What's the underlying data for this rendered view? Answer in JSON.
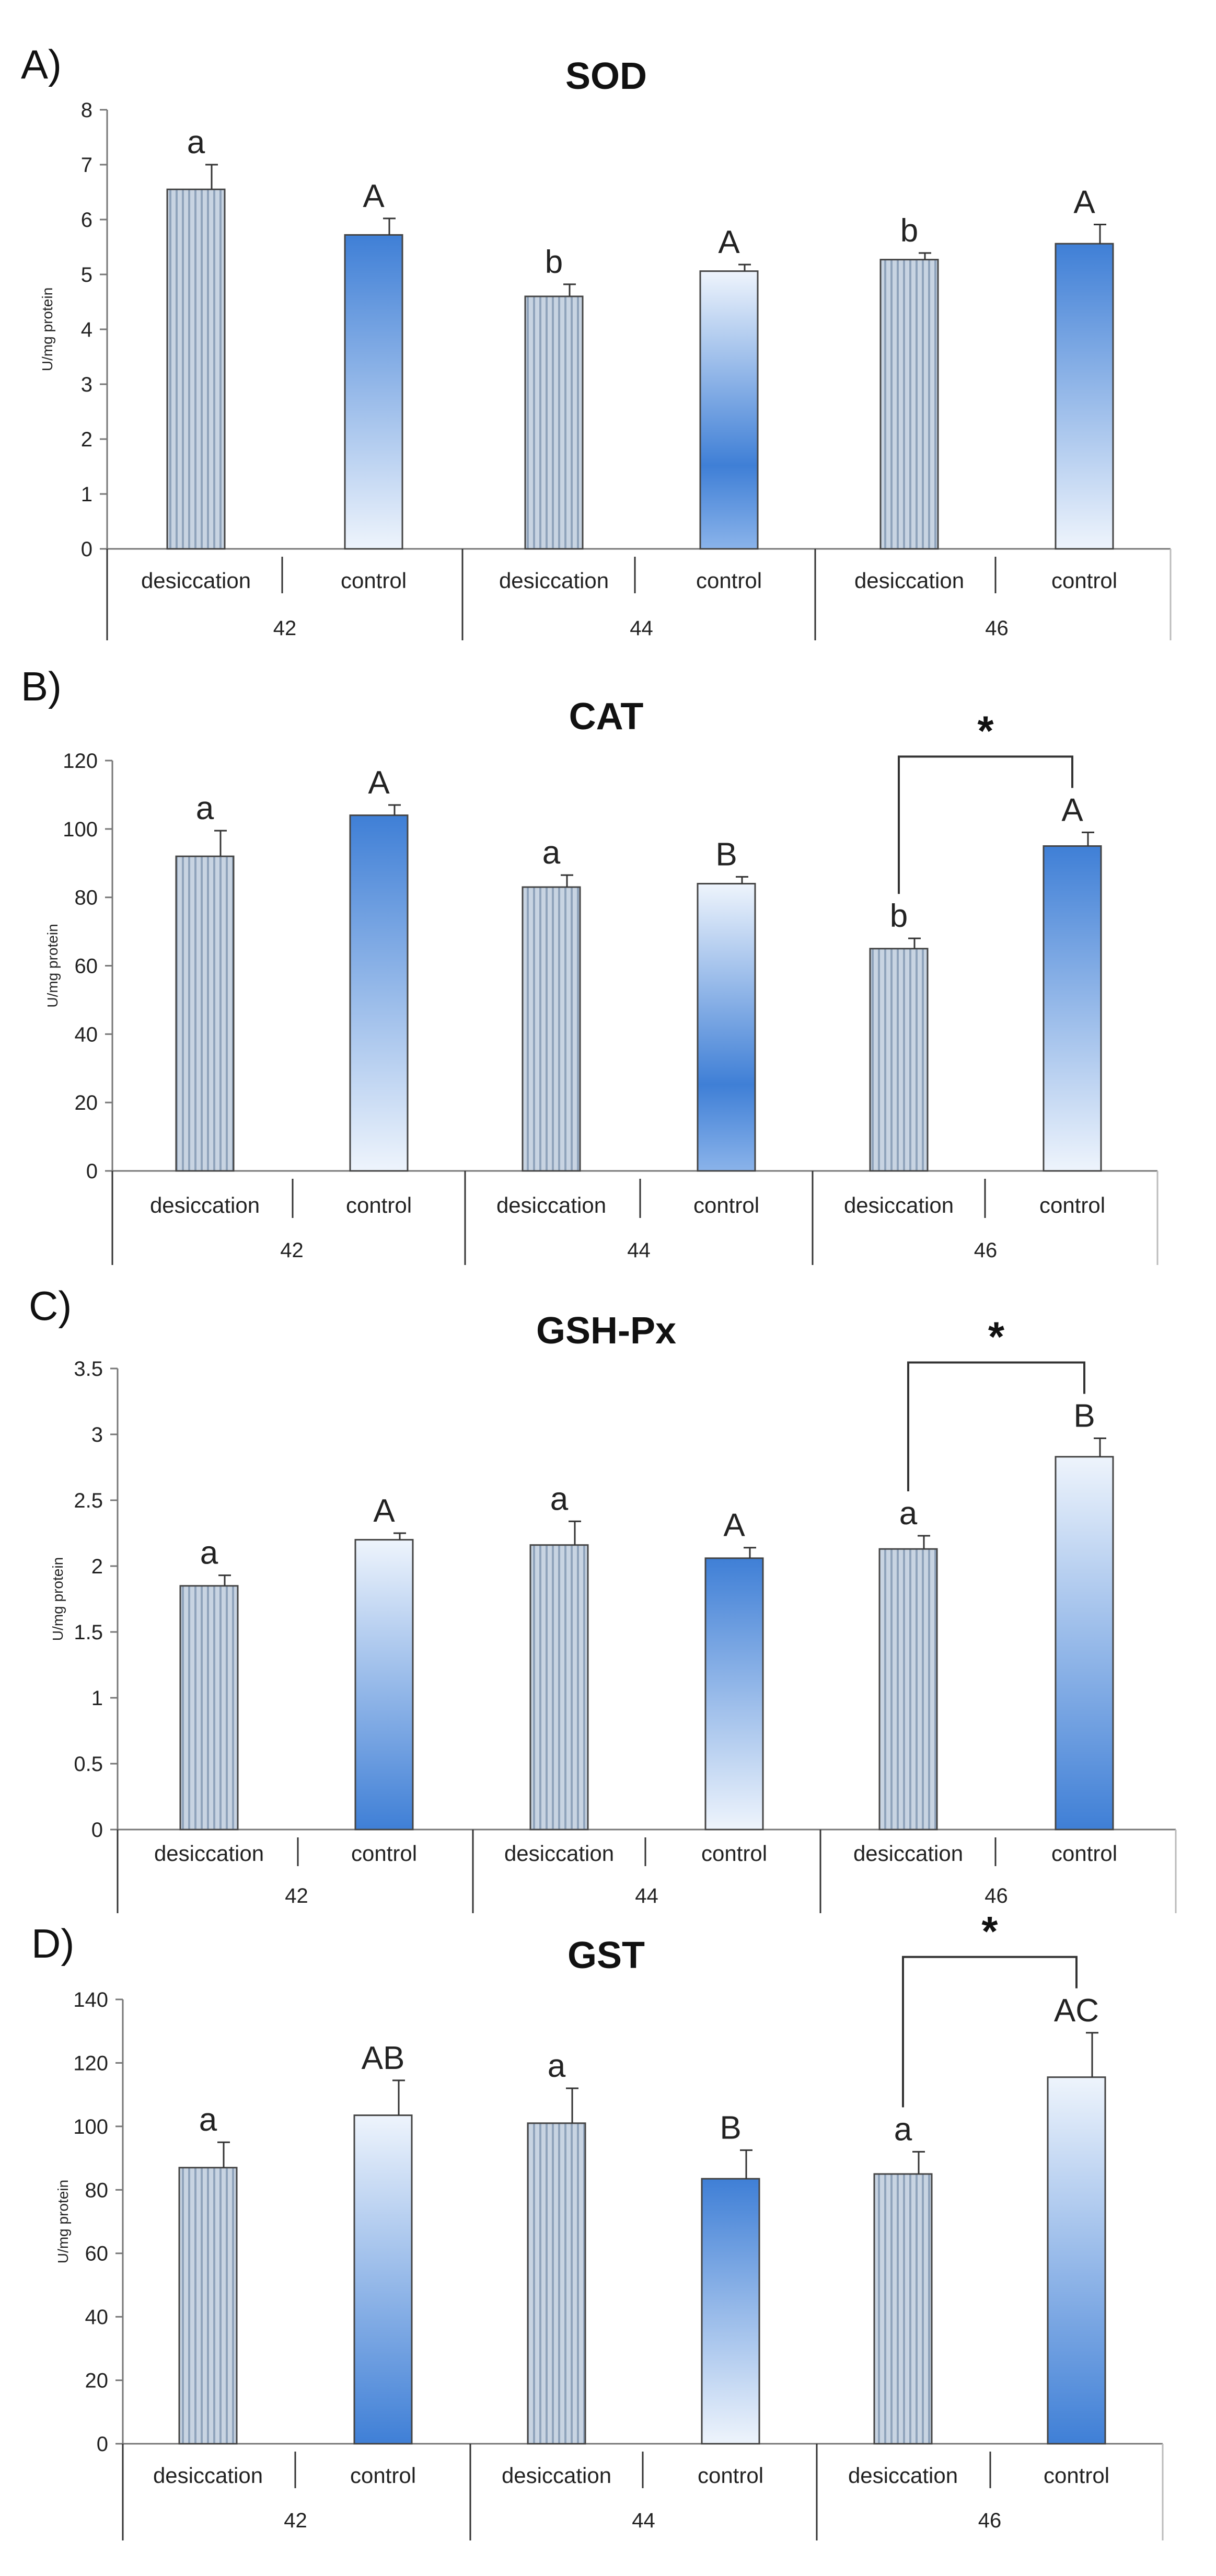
{
  "figure_description": "",
  "colors": {
    "desiccation": "#c8d4e2",
    "desiccation_stripe": "#8fa3bb",
    "control_dark": "#3f7fd6",
    "control_light": "#eef4fc"
  },
  "chart_data": [
    {
      "type": "bar",
      "panel": "A)",
      "title": "SOD",
      "ylabel": "U/mg protein",
      "ylim": [
        0,
        8
      ],
      "yticks": [
        "0",
        "1",
        "2",
        "3",
        "4",
        "5",
        "6",
        "7",
        "8"
      ],
      "ytick_values": [
        0,
        1,
        2,
        3,
        4,
        5,
        6,
        7,
        8
      ],
      "groups": [
        "42",
        "44",
        "46"
      ],
      "categories": [
        "desiccation",
        "control",
        "desiccation",
        "control",
        "desiccation",
        "control"
      ],
      "values": [
        6.55,
        5.72,
        4.6,
        5.06,
        5.27,
        5.56
      ],
      "errors": [
        0.45,
        0.3,
        0.22,
        0.12,
        0.12,
        0.35
      ],
      "letters": [
        "a",
        "A",
        "b",
        "A",
        "b",
        "A"
      ],
      "significance": []
    },
    {
      "type": "bar",
      "panel": "B)",
      "title": "CAT",
      "ylabel": "U/mg protein",
      "ylim": [
        0,
        120
      ],
      "yticks": [
        "0",
        "20",
        "40",
        "60",
        "80",
        "100",
        "120"
      ],
      "ytick_values": [
        0,
        20,
        40,
        60,
        80,
        100,
        120
      ],
      "groups": [
        "42",
        "44",
        "46"
      ],
      "categories": [
        "desiccation",
        "control",
        "desiccation",
        "control",
        "desiccation",
        "control"
      ],
      "values": [
        92,
        104,
        83,
        84,
        65,
        95
      ],
      "errors": [
        7.5,
        3,
        3.5,
        2,
        3,
        4
      ],
      "letters": [
        "a",
        "A",
        "a",
        "B",
        "b",
        "A"
      ],
      "significance": [
        {
          "from": 4,
          "to": 5,
          "label": "*"
        }
      ]
    },
    {
      "type": "bar",
      "panel": "C)",
      "title": "GSH-Px",
      "ylabel": "U/mg protein",
      "ylim": [
        0,
        3.5
      ],
      "yticks": [
        "0",
        "0.5",
        "1",
        "1.5",
        "2",
        "2.5",
        "3",
        "3.5"
      ],
      "ytick_values": [
        0,
        0.5,
        1,
        1.5,
        2,
        2.5,
        3,
        3.5
      ],
      "groups": [
        "42",
        "44",
        "46"
      ],
      "categories": [
        "desiccation",
        "control",
        "desiccation",
        "control",
        "desiccation",
        "control"
      ],
      "values": [
        1.85,
        2.2,
        2.16,
        2.06,
        2.13,
        2.83
      ],
      "errors": [
        0.08,
        0.05,
        0.18,
        0.08,
        0.1,
        0.14
      ],
      "letters": [
        "a",
        "A",
        "a",
        "A",
        "a",
        "B"
      ],
      "significance": [
        {
          "from": 4,
          "to": 5,
          "label": "*"
        }
      ]
    },
    {
      "type": "bar",
      "panel": "D)",
      "title": "GST",
      "ylabel": "U/mg protein",
      "ylim": [
        0,
        140
      ],
      "yticks": [
        "0",
        "20",
        "40",
        "60",
        "80",
        "100",
        "120",
        "140"
      ],
      "ytick_values": [
        0,
        20,
        40,
        60,
        80,
        100,
        120,
        140
      ],
      "groups": [
        "42",
        "44",
        "46"
      ],
      "categories": [
        "desiccation",
        "control",
        "desiccation",
        "control",
        "desiccation",
        "control"
      ],
      "values": [
        87,
        103.5,
        101,
        83.5,
        85,
        115.5
      ],
      "errors": [
        8,
        11,
        11,
        9,
        7,
        14
      ],
      "letters": [
        "a",
        "AB",
        "a",
        "B",
        "a",
        "AC"
      ],
      "significance": [
        {
          "from": 4,
          "to": 5,
          "label": "*"
        }
      ]
    }
  ]
}
